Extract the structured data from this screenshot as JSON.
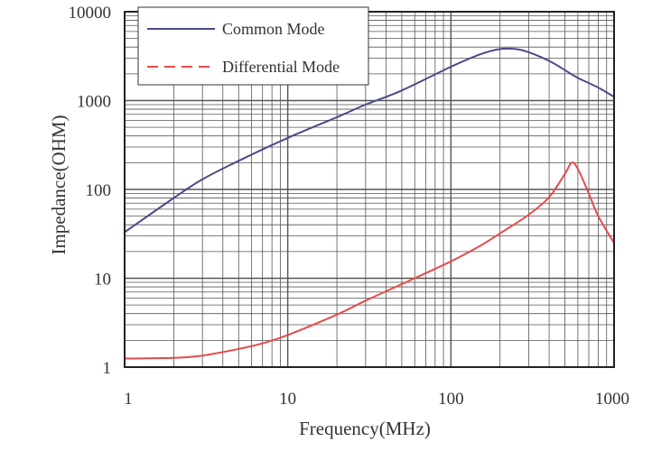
{
  "chart_data": {
    "type": "line",
    "xlabel": "Frequency(MHz)",
    "ylabel": "Impedance(OHM)",
    "x_scale": "log",
    "y_scale": "log",
    "xlim": [
      1,
      1000
    ],
    "ylim": [
      1,
      10000
    ],
    "grid": true,
    "legend_position": "top-left",
    "x_tick_labels": [
      "1",
      "10",
      "100",
      "1000"
    ],
    "y_tick_labels": [
      "1",
      "10",
      "100",
      "1000",
      "10000"
    ],
    "x_ticks": [
      1,
      10,
      100,
      1000
    ],
    "y_ticks": [
      1,
      10,
      100,
      1000,
      10000
    ],
    "series": [
      {
        "name": "Common Mode",
        "color": "#4a4a8c",
        "dash": "solid",
        "x": [
          1,
          2,
          3,
          5,
          10,
          20,
          30,
          50,
          100,
          150,
          200,
          250,
          300,
          400,
          500,
          600,
          800,
          1000
        ],
        "y": [
          33,
          80,
          130,
          210,
          380,
          650,
          900,
          1300,
          2400,
          3300,
          3800,
          3800,
          3500,
          2800,
          2200,
          1800,
          1400,
          1100
        ]
      },
      {
        "name": "Differential Mode",
        "color": "#e84a4a",
        "dash": "dashed",
        "x": [
          1,
          2,
          3,
          5,
          7,
          10,
          20,
          30,
          50,
          100,
          150,
          200,
          300,
          400,
          500,
          550,
          600,
          700,
          800,
          1000
        ],
        "y": [
          1.25,
          1.27,
          1.35,
          1.6,
          1.85,
          2.3,
          3.9,
          5.6,
          8.6,
          15.5,
          23,
          32,
          52,
          82,
          150,
          200,
          170,
          90,
          50,
          25
        ]
      }
    ]
  },
  "colors": {
    "background": "#ffffff",
    "grid": "#555555",
    "frame": "#222222",
    "text": "#333333"
  }
}
